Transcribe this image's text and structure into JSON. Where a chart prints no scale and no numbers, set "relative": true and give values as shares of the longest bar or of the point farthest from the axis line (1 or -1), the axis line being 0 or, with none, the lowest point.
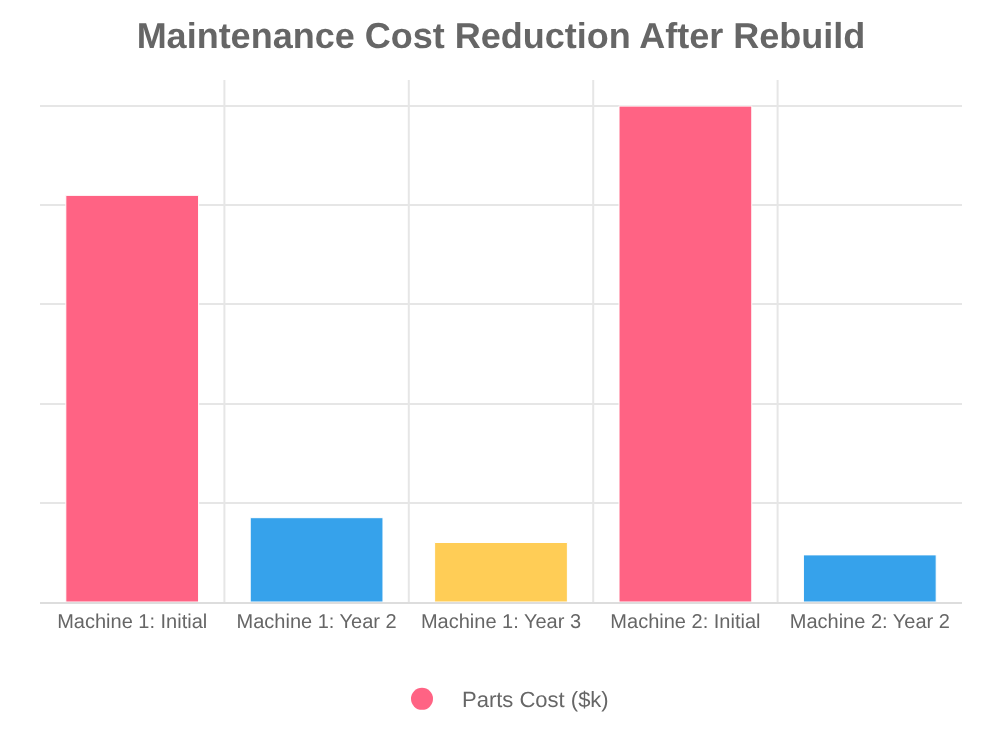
{
  "chart_data": {
    "type": "bar",
    "title": "Maintenance Cost Reduction After Rebuild",
    "categories": [
      "Machine 1: Initial",
      "Machine 1: Year 2",
      "Machine 1: Year 3",
      "Machine 2: Initial",
      "Machine 2: Year 2"
    ],
    "series": [
      {
        "name": "Parts Cost ($k)",
        "color": "#ff6384",
        "colors": [
          "#ff6384",
          "#36a2eb",
          "#ffcd56",
          "#ff6384",
          "#36a2eb"
        ],
        "values": [
          0.82,
          0.17,
          0.12,
          1,
          0.095
        ]
      }
    ],
    "relative": true,
    "grid": true,
    "legend": "bottom"
  }
}
